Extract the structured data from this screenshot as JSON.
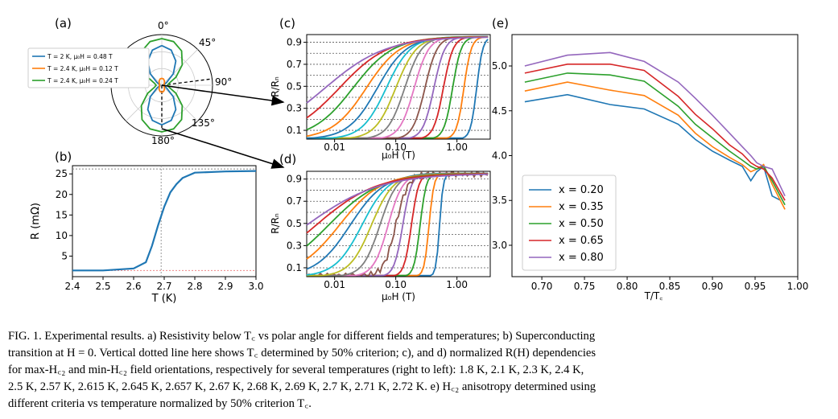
{
  "panels": {
    "a": {
      "label": "(a)",
      "angle_labels": [
        "0°",
        "45°",
        "90°",
        "135°",
        "180°"
      ],
      "legend": [
        {
          "text": "T = 2 K, μ₀H = 0.48 T",
          "color": "#1f77b4"
        },
        {
          "text": "T = 2.4 K, μ₀H = 0.12 T",
          "color": "#ff7f0e"
        },
        {
          "text": "T = 2.4 K, μ₀H = 0.24 T",
          "color": "#2ca02c"
        }
      ]
    },
    "b": {
      "label": "(b)",
      "xlabel": "T (K)",
      "ylabel": "R (mΩ)",
      "xticks": [
        "2.4",
        "2.5",
        "2.6",
        "2.7",
        "2.8",
        "2.9",
        "3.0"
      ],
      "yticks": [
        "5",
        "10",
        "15",
        "20",
        "25"
      ]
    },
    "c": {
      "label": "(c)",
      "xlabel": "μ₀H (T)",
      "ylabel": "R/Rₙ",
      "xticks": [
        "0.01",
        "0.10",
        "1.00"
      ],
      "yticks": [
        "0.1",
        "0.3",
        "0.5",
        "0.7",
        "0.9"
      ]
    },
    "d": {
      "label": "(d)",
      "xlabel": "μ₀H (T)",
      "ylabel": "R/Rₙ",
      "xticks": [
        "0.01",
        "0.10",
        "1.00"
      ],
      "yticks": [
        "0.1",
        "0.3",
        "0.5",
        "0.7",
        "0.9"
      ]
    },
    "e": {
      "label": "(e)",
      "xlabel": "T/T꜀",
      "xticks": [
        "0.70",
        "0.75",
        "0.80",
        "0.85",
        "0.90",
        "0.95",
        "1.00"
      ],
      "yticks": [
        "3.0",
        "3.5",
        "4.0",
        "4.5",
        "5.0"
      ],
      "legend": [
        {
          "text": "x = 0.20",
          "color": "#1f77b4"
        },
        {
          "text": "x = 0.35",
          "color": "#ff7f0e"
        },
        {
          "text": "x = 0.50",
          "color": "#2ca02c"
        },
        {
          "text": "x = 0.65",
          "color": "#d62728"
        },
        {
          "text": "x = 0.80",
          "color": "#9467bd"
        }
      ]
    }
  },
  "chart_data": [
    {
      "panel": "a",
      "type": "polar",
      "angle_unit": "deg",
      "series": [
        {
          "name": "T = 2 K, μ₀H = 0.48 T",
          "angles": [
            0,
            15,
            30,
            45,
            60,
            75,
            90,
            105,
            120,
            135,
            150,
            165,
            180
          ],
          "values": [
            0.85,
            0.78,
            0.6,
            0.35,
            0.12,
            0.05,
            0.04,
            0.05,
            0.12,
            0.35,
            0.6,
            0.78,
            0.85
          ]
        },
        {
          "name": "T = 2.4 K, μ₀H = 0.12 T",
          "angles": [
            0,
            15,
            30,
            45,
            60,
            75,
            90,
            105,
            120,
            135,
            150,
            165,
            180
          ],
          "values": [
            0.15,
            0.14,
            0.11,
            0.08,
            0.06,
            0.05,
            0.05,
            0.05,
            0.06,
            0.08,
            0.11,
            0.14,
            0.15
          ]
        },
        {
          "name": "T = 2.4 K, μ₀H = 0.24 T",
          "angles": [
            0,
            15,
            30,
            45,
            60,
            75,
            90,
            105,
            120,
            135,
            150,
            165,
            180
          ],
          "values": [
            1.0,
            0.97,
            0.85,
            0.62,
            0.35,
            0.16,
            0.12,
            0.16,
            0.35,
            0.62,
            0.85,
            0.97,
            1.0
          ]
        }
      ]
    },
    {
      "panel": "b",
      "type": "line",
      "x": [
        2.4,
        2.5,
        2.6,
        2.64,
        2.66,
        2.68,
        2.7,
        2.72,
        2.74,
        2.76,
        2.8,
        2.9,
        3.0
      ],
      "y": [
        1.5,
        1.5,
        2.0,
        3.5,
        7.5,
        12.5,
        17.0,
        20.5,
        22.5,
        24.0,
        25.3,
        25.6,
        25.7
      ],
      "xlim": [
        2.4,
        3.0
      ],
      "ylim": [
        0,
        27
      ],
      "vline_x": 2.69,
      "hline_y": [
        1.5,
        26.2
      ]
    },
    {
      "panel": "c",
      "type": "line",
      "xscale": "log",
      "xlim": [
        0.0035,
        3.5
      ],
      "ylim": [
        0.02,
        0.97
      ],
      "legend_temperatures_K": [
        1.8,
        2.1,
        2.3,
        2.4,
        2.5,
        2.57,
        2.615,
        2.645,
        2.657,
        2.67,
        2.68,
        2.69,
        2.7,
        2.71,
        2.72
      ],
      "midpoint_fields_T": [
        2.1,
        1.3,
        0.85,
        0.6,
        0.42,
        0.3,
        0.2,
        0.14,
        0.1,
        0.07,
        0.05,
        0.033,
        0.02,
        0.012,
        0.007
      ],
      "hlines": [
        0.1,
        0.2,
        0.3,
        0.4,
        0.5,
        0.6,
        0.7,
        0.8,
        0.9
      ]
    },
    {
      "panel": "d",
      "type": "line",
      "xscale": "log",
      "xlim": [
        0.0035,
        3.5
      ],
      "ylim": [
        0.02,
        0.97
      ],
      "legend_temperatures_K": [
        1.8,
        2.1,
        2.3,
        2.4,
        2.5,
        2.57,
        2.615,
        2.645,
        2.657,
        2.67,
        2.68,
        2.69,
        2.7,
        2.71,
        2.72
      ],
      "midpoint_fields_T": [
        0.52,
        0.35,
        0.25,
        0.18,
        0.13,
        0.1,
        0.075,
        0.055,
        0.04,
        0.028,
        0.018,
        0.012,
        0.008,
        0.005,
        0.0035
      ],
      "hlines": [
        0.1,
        0.2,
        0.3,
        0.4,
        0.5,
        0.6,
        0.7,
        0.8,
        0.9
      ]
    },
    {
      "panel": "e",
      "type": "line",
      "xlim": [
        0.665,
        1.0
      ],
      "ylim": [
        2.65,
        5.35
      ],
      "series": [
        {
          "name": "x = 0.20",
          "x": [
            0.68,
            0.73,
            0.78,
            0.82,
            0.86,
            0.88,
            0.9,
            0.92,
            0.935,
            0.945,
            0.952,
            0.96,
            0.97,
            0.98
          ],
          "y": [
            4.6,
            4.68,
            4.57,
            4.52,
            4.35,
            4.18,
            4.05,
            3.95,
            3.88,
            3.72,
            3.82,
            3.88,
            3.55,
            3.5
          ]
        },
        {
          "name": "x = 0.35",
          "x": [
            0.68,
            0.73,
            0.78,
            0.82,
            0.86,
            0.88,
            0.9,
            0.92,
            0.935,
            0.945,
            0.952,
            0.96,
            0.97,
            0.985
          ],
          "y": [
            4.72,
            4.82,
            4.73,
            4.67,
            4.45,
            4.25,
            4.1,
            3.98,
            3.9,
            3.82,
            3.85,
            3.9,
            3.68,
            3.4
          ]
        },
        {
          "name": "x = 0.50",
          "x": [
            0.68,
            0.73,
            0.78,
            0.82,
            0.86,
            0.88,
            0.9,
            0.92,
            0.935,
            0.945,
            0.952,
            0.96,
            0.97,
            0.985
          ],
          "y": [
            4.82,
            4.92,
            4.9,
            4.83,
            4.55,
            4.35,
            4.2,
            4.05,
            3.95,
            3.88,
            3.85,
            3.88,
            3.72,
            3.45
          ]
        },
        {
          "name": "x = 0.65",
          "x": [
            0.68,
            0.73,
            0.78,
            0.82,
            0.86,
            0.88,
            0.9,
            0.92,
            0.935,
            0.945,
            0.952,
            0.96,
            0.97,
            0.985
          ],
          "y": [
            4.92,
            5.02,
            5.02,
            4.95,
            4.66,
            4.46,
            4.3,
            4.12,
            4.02,
            3.92,
            3.88,
            3.85,
            3.75,
            3.5
          ]
        },
        {
          "name": "x = 0.80",
          "x": [
            0.68,
            0.73,
            0.78,
            0.82,
            0.86,
            0.88,
            0.9,
            0.92,
            0.935,
            0.945,
            0.952,
            0.96,
            0.97,
            0.985
          ],
          "y": [
            5.0,
            5.12,
            5.15,
            5.05,
            4.82,
            4.64,
            4.45,
            4.25,
            4.1,
            4.0,
            3.92,
            3.88,
            3.85,
            3.55
          ]
        }
      ]
    }
  ],
  "caption": {
    "lines": [
      "FIG. 1. Experimental results. a) Resistivity below T꜀ vs polar angle for different fields and temperatures; b) Superconducting",
      "transition at H = 0. Vertical dotted line here shows T꜀ determined by 50% criterion; c), and d) normalized R(H) dependencies",
      "for max-H꜀₂ and min-H꜀₂ field orientations, respectively for several temperatures (right to left): 1.8 K, 2.1 K, 2.3 K, 2.4 K,",
      "2.5 K, 2.57 K, 2.615 K, 2.645 K, 2.657 K, 2.67 K, 2.68 K, 2.69 K, 2.7 K, 2.71 K, 2.72 K. e) H꜀₂ anisotropy determined using",
      "different criteria vs temperature normalized by 50% criterion T꜀."
    ]
  }
}
